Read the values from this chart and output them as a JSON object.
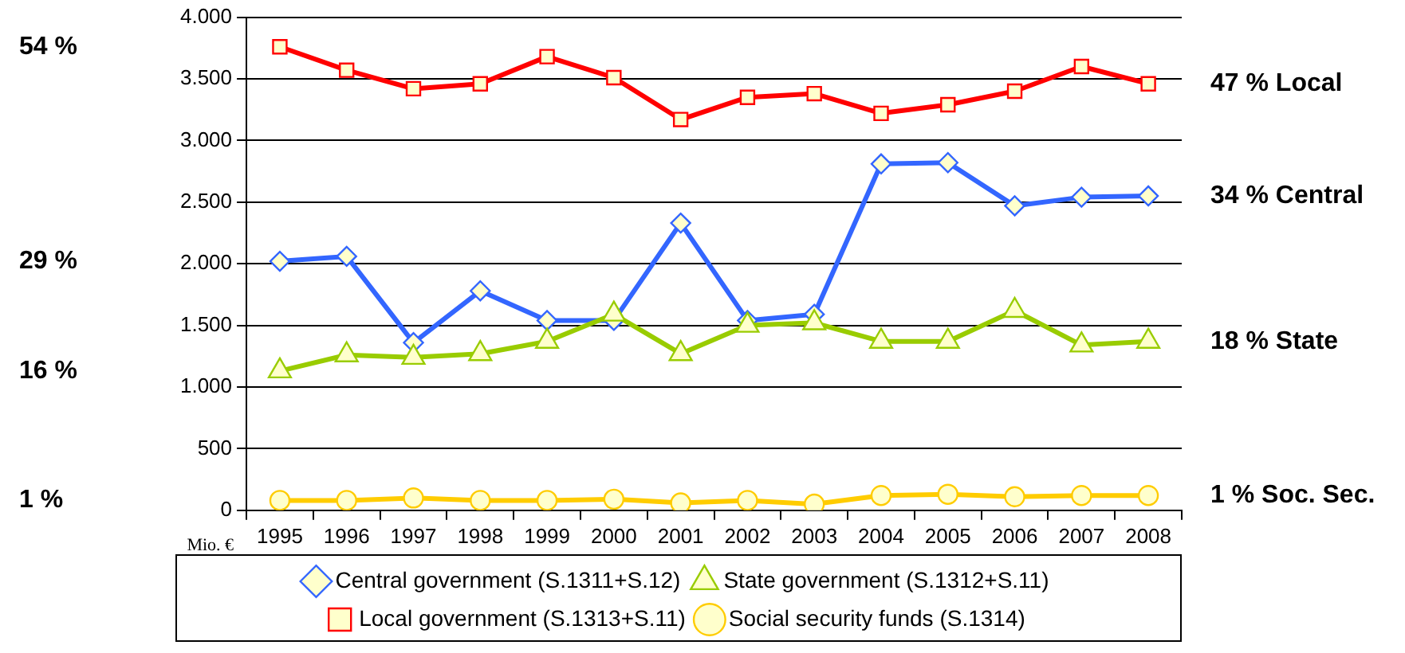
{
  "chart_data": {
    "type": "line",
    "ylabel": "Mio. €",
    "categories": [
      "1995",
      "1996",
      "1997",
      "1998",
      "1999",
      "2000",
      "2001",
      "2002",
      "2003",
      "2004",
      "2005",
      "2006",
      "2007",
      "2008"
    ],
    "series": [
      {
        "name": "Central government (S.1311+S.12)",
        "color": "#3366ff",
        "marker": "diamond",
        "values": [
          2020,
          2060,
          1360,
          1780,
          1540,
          1540,
          2330,
          1540,
          1590,
          2810,
          2820,
          2470,
          2540,
          2550
        ]
      },
      {
        "name": "State government (S.1312+S.11)",
        "color": "#99cc00",
        "marker": "triangle",
        "values": [
          1130,
          1260,
          1240,
          1270,
          1370,
          1590,
          1270,
          1500,
          1520,
          1370,
          1370,
          1620,
          1340,
          1370
        ]
      },
      {
        "name": "Local government (S.1313+S.11)",
        "color": "#ff0000",
        "marker": "square",
        "values": [
          3760,
          3570,
          3420,
          3460,
          3680,
          3510,
          3170,
          3350,
          3380,
          3220,
          3290,
          3400,
          3600,
          3460
        ]
      },
      {
        "name": "Social security funds (S.1314)",
        "color": "#ffcc00",
        "marker": "circle",
        "values": [
          80,
          80,
          100,
          80,
          80,
          90,
          60,
          80,
          50,
          120,
          130,
          110,
          120,
          120
        ]
      }
    ],
    "ylim": [
      0,
      4000
    ],
    "yticks": [
      0,
      {
        "value": 500,
        "label": "500"
      },
      {
        "value": 1000,
        "label": "1.000"
      },
      {
        "value": 1500,
        "label": "1.500"
      },
      {
        "value": 2000,
        "label": "2.000"
      },
      {
        "value": 2500,
        "label": "2.500"
      },
      {
        "value": 3000,
        "label": "3.000"
      },
      {
        "value": 3500,
        "label": "3.500"
      },
      {
        "value": 4000,
        "label": "4.000"
      }
    ],
    "grid": "y",
    "legend": "bottom",
    "line_style": "solid",
    "annotations": [
      "54 %",
      "29 %",
      "16 %",
      "1 %",
      "47 % Local",
      "34 % Central",
      "18 % State",
      "1 % Soc. Sec."
    ]
  }
}
